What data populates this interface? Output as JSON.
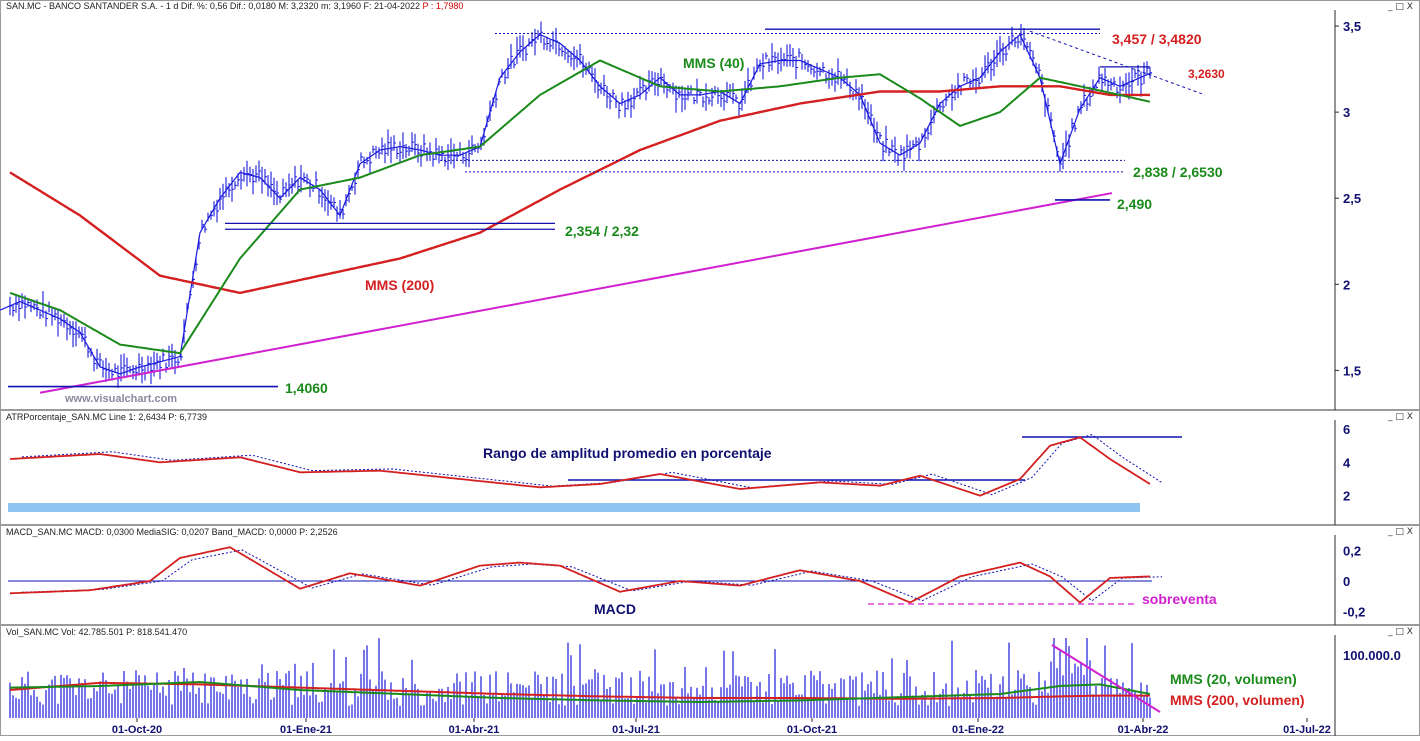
{
  "header": {
    "symbol": "SAN.MC - BANCO SANTANDER S.A. -  1 d",
    "stats": "Dif. %: 0,56  Dif.: 0,0180  M: 3,2320  m: 3,1960  F: 21-04-2022",
    "price": "P : 1,7980"
  },
  "panes": {
    "atr_title": "ATRPorcentaje_SAN.MC  Line 1: 2,6434  P: 6,7739",
    "macd_title": "MACD_SAN.MC  MACD: 0,0300  MediaSIG: 0,0207  Band_MACD: 0,0000  P: 2,2526",
    "vol_title": "Vol_SAN.MC  Vol: 42.785.501  P: 818.541.470",
    "window_controls": "_ □ X"
  },
  "watermark": "www.visualchart.com",
  "colors": {
    "price_bars": "#1a1adc",
    "mms40": "#1a8a1a",
    "mms200": "#d42020",
    "trendline": "#d020d0",
    "level_line": "#1010b0",
    "label_green": "#1a8a1a",
    "label_red": "#d42020",
    "label_magenta": "#d020d0",
    "label_navy": "#101070",
    "atr_band": "#8ec5f0"
  },
  "chart_data": [
    {
      "type": "line",
      "name": "price",
      "x_tick_labels": [
        "01-Oct-20",
        "01-Ene-21",
        "01-Abr-21",
        "01-Jul-21",
        "01-Oct-21",
        "01-Ene-22",
        "01-Abr-22",
        "01-Jul-22"
      ],
      "y_tick_labels": [
        "3,5",
        "3",
        "2,5",
        "2",
        "1,5"
      ],
      "ylim": [
        1.27,
        3.57
      ],
      "series": [
        {
          "name": "Precio",
          "style": "bars",
          "x": [
            0,
            20,
            40,
            60,
            80,
            100,
            120,
            140,
            160,
            180,
            200,
            220,
            240,
            260,
            280,
            300,
            320,
            340,
            360,
            380,
            400,
            420,
            440,
            460,
            480,
            500,
            520,
            540,
            560,
            580,
            600,
            620,
            640,
            660,
            680,
            700,
            720,
            740,
            760,
            780,
            800,
            820,
            840,
            860,
            880,
            900,
            920,
            940,
            960,
            980,
            1000,
            1020,
            1040,
            1060,
            1080,
            1100,
            1120,
            1140,
            1152
          ],
          "values": [
            1.85,
            1.9,
            1.85,
            1.8,
            1.72,
            1.52,
            1.48,
            1.52,
            1.55,
            1.58,
            2.3,
            2.5,
            2.65,
            2.62,
            2.5,
            2.62,
            2.55,
            2.4,
            2.7,
            2.78,
            2.8,
            2.78,
            2.75,
            2.75,
            2.8,
            3.2,
            3.35,
            3.45,
            3.4,
            3.3,
            3.15,
            3.05,
            3.1,
            3.2,
            3.1,
            3.1,
            3.12,
            3.05,
            3.28,
            3.3,
            3.3,
            3.25,
            3.2,
            3.1,
            2.82,
            2.75,
            2.82,
            3.05,
            3.15,
            3.2,
            3.35,
            3.45,
            3.2,
            2.7,
            3.02,
            3.2,
            3.15,
            3.2,
            3.23
          ]
        },
        {
          "name": "MMS (40)",
          "x": [
            10,
            60,
            120,
            180,
            240,
            300,
            360,
            420,
            480,
            540,
            600,
            660,
            720,
            780,
            840,
            880,
            920,
            960,
            1000,
            1040,
            1080,
            1120,
            1150
          ],
          "values": [
            1.95,
            1.85,
            1.65,
            1.6,
            2.15,
            2.55,
            2.62,
            2.75,
            2.8,
            3.1,
            3.3,
            3.15,
            3.12,
            3.15,
            3.2,
            3.22,
            3.08,
            2.92,
            3.0,
            3.2,
            3.15,
            3.1,
            3.06
          ]
        },
        {
          "name": "MMS (200)",
          "x": [
            10,
            80,
            160,
            240,
            320,
            400,
            480,
            560,
            640,
            720,
            800,
            880,
            940,
            1000,
            1060,
            1110,
            1150
          ],
          "values": [
            2.65,
            2.4,
            2.05,
            1.95,
            2.05,
            2.15,
            2.3,
            2.55,
            2.78,
            2.95,
            3.05,
            3.12,
            3.12,
            3.15,
            3.15,
            3.1,
            3.1
          ]
        },
        {
          "name": "trendline",
          "x": [
            40,
            1112
          ],
          "values": [
            1.37,
            2.53
          ]
        }
      ],
      "horizontal_levels": [
        {
          "value": 1.406,
          "label": "1,4060"
        },
        {
          "value": 2.354,
          "label": "2,354 / 2,32"
        },
        {
          "value": 2.49,
          "label": "2,490"
        },
        {
          "value": 2.838,
          "label": "2,838 / 2,6530"
        },
        {
          "value": 3.263,
          "label": "3,2630"
        },
        {
          "value": 3.482,
          "label": "3,457 / 3,4820"
        }
      ],
      "annotations": [
        "MMS (40)",
        "MMS (200)",
        "3,457 / 3,4820",
        "3,2630",
        "2,838 / 2,6530",
        "2,490",
        "2,354 / 2,32",
        "1,4060"
      ]
    },
    {
      "type": "line",
      "name": "ATR porcentaje",
      "y_tick_labels": [
        "6",
        "4",
        "2"
      ],
      "ylim": [
        0.3,
        6.3
      ],
      "annotation": "Rango de amplitud promedio en porcentaje",
      "series": [
        {
          "name": "ATR",
          "x": [
            10,
            100,
            160,
            240,
            300,
            380,
            460,
            540,
            600,
            660,
            740,
            820,
            880,
            920,
            980,
            1020,
            1050,
            1080,
            1110,
            1150
          ],
          "values": [
            4.2,
            4.5,
            4.0,
            4.3,
            3.4,
            3.5,
            3.0,
            2.5,
            2.7,
            3.3,
            2.4,
            2.8,
            2.6,
            3.2,
            2.0,
            3.0,
            5.0,
            5.5,
            4.2,
            2.7
          ]
        }
      ]
    },
    {
      "type": "line",
      "name": "MACD",
      "y_tick_labels": [
        "0,2",
        "0",
        "-0,2"
      ],
      "ylim": [
        -0.28,
        0.28
      ],
      "annotations": [
        "MACD",
        "sobreventa"
      ],
      "series": [
        {
          "name": "MACD",
          "x": [
            10,
            90,
            150,
            180,
            230,
            300,
            350,
            420,
            480,
            520,
            560,
            620,
            680,
            740,
            800,
            860,
            910,
            960,
            1020,
            1050,
            1080,
            1110,
            1150
          ],
          "values": [
            -0.08,
            -0.06,
            0.0,
            0.15,
            0.22,
            -0.05,
            0.05,
            -0.03,
            0.1,
            0.12,
            0.1,
            -0.07,
            0.0,
            -0.03,
            0.07,
            0.0,
            -0.14,
            0.03,
            0.12,
            0.03,
            -0.14,
            0.02,
            0.03
          ]
        }
      ]
    },
    {
      "type": "bar",
      "name": "Volumen",
      "y_tick_labels": [
        "100.000.0"
      ],
      "series": [
        {
          "name": "MMS (20, volumen)",
          "x": [
            10,
            100,
            200,
            300,
            400,
            500,
            600,
            700,
            800,
            900,
            1000,
            1060,
            1100,
            1150
          ],
          "values": [
            0.38,
            0.4,
            0.45,
            0.35,
            0.3,
            0.25,
            0.22,
            0.2,
            0.22,
            0.26,
            0.3,
            0.4,
            0.42,
            0.3
          ]
        },
        {
          "name": "MMS (200, volumen)",
          "x": [
            10,
            100,
            200,
            300,
            400,
            500,
            600,
            700,
            800,
            900,
            1000,
            1060,
            1100,
            1150
          ],
          "values": [
            0.35,
            0.44,
            0.42,
            0.38,
            0.34,
            0.3,
            0.27,
            0.25,
            0.25,
            0.24,
            0.25,
            0.27,
            0.28,
            0.28
          ]
        }
      ]
    }
  ]
}
